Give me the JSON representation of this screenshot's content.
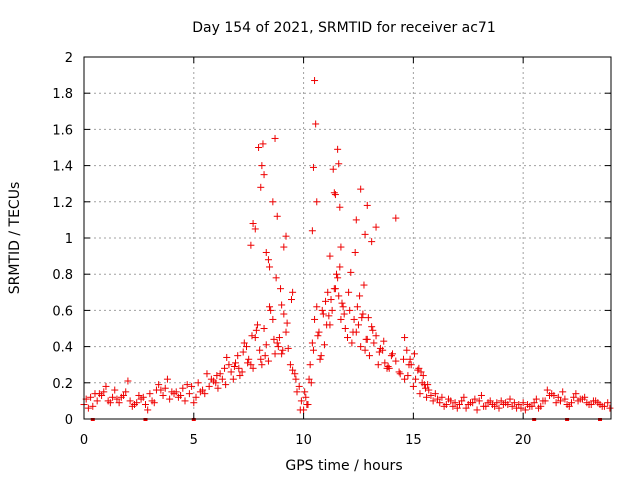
{
  "chart_data": {
    "type": "scatter",
    "title": "Day 154 of 2021, SRMTID for receiver ac71",
    "xlabel": "GPS time / hours",
    "ylabel": "SRMTID / TECUs",
    "xlim": [
      0,
      24
    ],
    "ylim": [
      0,
      2
    ],
    "xticks": [
      0,
      5,
      10,
      15,
      20
    ],
    "yticks": [
      0,
      0.2,
      0.4,
      0.6,
      0.8,
      1,
      1.2,
      1.4,
      1.6,
      1.8,
      2
    ],
    "xtick_labels": [
      "0",
      "5",
      "10",
      "15",
      "20"
    ],
    "ytick_labels": [
      "0",
      "0.2",
      "0.4",
      "0.6",
      "0.8",
      "1",
      "1.2",
      "1.4",
      "1.6",
      "1.8",
      "2"
    ],
    "grid": true,
    "marker": "+",
    "color": "#ee0000",
    "series": [
      {
        "name": "SRMTID",
        "x": [
          0.0,
          0.3,
          0.6,
          0.9,
          1.2,
          1.5,
          1.8,
          2.1,
          2.4,
          2.7,
          3.0,
          3.3,
          3.6,
          3.9,
          4.2,
          4.5,
          4.8,
          5.1,
          5.4,
          5.7,
          0.1,
          0.4,
          0.7,
          1.0,
          1.3,
          1.6,
          1.9,
          2.2,
          2.5,
          2.8,
          3.1,
          3.4,
          3.7,
          4.0,
          4.3,
          4.6,
          4.9,
          5.2,
          5.5,
          5.8,
          0.2,
          0.8,
          1.4,
          2.0,
          2.6,
          3.2,
          3.8,
          4.4,
          5.0,
          5.6,
          0.5,
          1.1,
          1.7,
          2.3,
          2.9,
          3.5,
          4.1,
          4.7,
          5.3,
          5.9,
          6.0,
          6.2,
          6.4,
          6.6,
          6.8,
          7.0,
          7.2,
          7.4,
          7.6,
          7.8,
          8.0,
          8.2,
          8.4,
          8.6,
          8.8,
          9.0,
          9.2,
          9.4,
          9.6,
          9.8,
          6.1,
          6.3,
          6.5,
          6.7,
          6.9,
          7.1,
          7.3,
          7.5,
          7.7,
          7.9,
          8.1,
          8.3,
          8.5,
          8.7,
          8.9,
          9.1,
          9.3,
          9.5,
          9.7,
          9.9,
          6.05,
          6.45,
          6.85,
          7.25,
          7.65,
          8.05,
          8.45,
          8.85,
          9.25,
          9.65,
          7.05,
          7.45,
          7.85,
          8.25,
          8.65,
          9.05,
          9.45,
          9.85,
          7.8,
          7.95,
          8.05,
          8.1,
          8.15,
          8.2,
          8.3,
          8.45,
          8.6,
          8.7,
          8.75,
          8.8,
          8.95,
          9.1,
          9.2,
          9.5,
          7.6,
          7.7,
          8.4,
          9.0,
          10.0,
          10.1,
          10.2,
          10.3,
          10.4,
          10.5,
          10.6,
          10.7,
          10.8,
          10.9,
          11.0,
          11.1,
          11.2,
          11.3,
          11.4,
          11.5,
          11.6,
          11.7,
          11.8,
          11.9,
          12.0,
          12.1,
          12.2,
          12.3,
          12.4,
          12.5,
          12.6,
          12.7,
          12.8,
          12.9,
          13.0,
          13.2,
          13.4,
          13.6,
          13.8,
          14.0,
          14.2,
          14.4,
          14.6,
          14.8,
          10.05,
          10.25,
          10.45,
          10.65,
          10.85,
          11.05,
          11.25,
          11.45,
          11.65,
          11.85,
          12.05,
          12.25,
          12.45,
          12.65,
          12.85,
          13.1,
          13.3,
          13.5,
          13.7,
          13.9,
          10.5,
          10.55,
          10.45,
          10.6,
          10.4,
          11.4,
          11.55,
          11.6,
          11.65,
          11.45,
          11.35,
          11.7,
          12.6,
          12.9,
          13.1,
          12.8,
          12.4,
          13.3,
          14.2,
          11.2,
          10.15,
          10.35,
          10.75,
          10.95,
          11.15,
          11.55,
          11.75,
          12.15,
          12.35,
          12.55,
          12.75,
          12.95,
          13.15,
          13.45,
          13.65,
          13.85,
          14.05,
          14.35,
          14.55,
          14.75,
          15.0,
          15.3,
          15.6,
          15.9,
          16.2,
          16.5,
          16.8,
          17.1,
          17.4,
          17.7,
          18.0,
          18.3,
          18.6,
          18.9,
          19.2,
          19.5,
          19.8,
          20.1,
          20.4,
          20.7,
          15.1,
          15.4,
          15.7,
          16.0,
          16.3,
          16.6,
          16.9,
          17.2,
          17.5,
          17.8,
          18.1,
          18.4,
          18.7,
          19.0,
          19.3,
          19.6,
          19.9,
          20.2,
          20.5,
          20.8,
          21.0,
          21.3,
          21.6,
          21.9,
          22.2,
          22.5,
          22.8,
          23.1,
          23.4,
          23.7,
          23.95,
          21.1,
          21.4,
          21.7,
          22.0,
          22.3,
          22.6,
          22.9,
          23.2,
          23.5,
          15.2,
          15.5,
          15.8,
          16.1,
          16.4,
          16.7,
          17.0,
          17.3,
          17.6,
          17.9,
          18.2,
          18.5,
          18.8,
          19.1,
          19.4,
          19.7,
          20.0,
          20.3,
          20.6,
          20.9,
          14.9,
          15.05,
          15.25,
          15.45,
          15.65,
          14.6,
          14.7,
          14.85,
          15.35,
          15.55,
          21.2,
          21.5,
          21.8,
          22.1,
          22.4,
          22.7,
          23.0,
          23.3,
          23.6,
          23.85
        ],
        "y": [
          0.08,
          0.12,
          0.1,
          0.15,
          0.09,
          0.11,
          0.13,
          0.1,
          0.09,
          0.12,
          0.14,
          0.16,
          0.13,
          0.11,
          0.15,
          0.17,
          0.14,
          0.12,
          0.16,
          0.18,
          0.11,
          0.07,
          0.14,
          0.18,
          0.12,
          0.09,
          0.15,
          0.07,
          0.13,
          0.08,
          0.1,
          0.19,
          0.17,
          0.15,
          0.12,
          0.1,
          0.18,
          0.2,
          0.14,
          0.22,
          0.06,
          0.13,
          0.16,
          0.21,
          0.11,
          0.09,
          0.22,
          0.13,
          0.09,
          0.25,
          0.14,
          0.1,
          0.12,
          0.08,
          0.05,
          0.16,
          0.14,
          0.19,
          0.15,
          0.21,
          0.2,
          0.25,
          0.28,
          0.3,
          0.22,
          0.35,
          0.26,
          0.4,
          0.3,
          0.45,
          0.38,
          0.5,
          0.32,
          0.55,
          0.42,
          0.36,
          0.48,
          0.3,
          0.25,
          0.18,
          0.17,
          0.22,
          0.34,
          0.26,
          0.31,
          0.24,
          0.42,
          0.33,
          0.28,
          0.52,
          0.3,
          0.41,
          0.6,
          0.36,
          0.45,
          0.58,
          0.39,
          0.27,
          0.15,
          0.1,
          0.24,
          0.19,
          0.29,
          0.37,
          0.46,
          0.33,
          0.62,
          0.4,
          0.53,
          0.22,
          0.28,
          0.31,
          0.49,
          0.35,
          0.44,
          0.38,
          0.66,
          0.05,
          1.05,
          1.5,
          1.28,
          1.4,
          1.52,
          1.35,
          0.92,
          0.84,
          1.2,
          1.55,
          0.78,
          1.12,
          0.72,
          0.95,
          1.01,
          0.7,
          0.96,
          1.08,
          0.88,
          0.63,
          0.05,
          0.12,
          0.08,
          0.3,
          0.42,
          0.55,
          0.62,
          0.48,
          0.35,
          0.58,
          0.65,
          0.7,
          0.52,
          0.6,
          0.72,
          0.8,
          0.68,
          0.55,
          0.62,
          0.5,
          0.45,
          0.6,
          0.42,
          0.55,
          0.48,
          0.52,
          0.4,
          0.58,
          0.38,
          0.44,
          0.35,
          0.42,
          0.3,
          0.38,
          0.28,
          0.35,
          0.32,
          0.25,
          0.22,
          0.3,
          0.15,
          0.22,
          0.38,
          0.46,
          0.6,
          0.52,
          0.66,
          0.72,
          0.84,
          0.58,
          0.7,
          0.48,
          0.62,
          0.56,
          0.44,
          0.51,
          0.46,
          0.39,
          0.31,
          0.28,
          1.87,
          1.63,
          1.39,
          1.2,
          1.04,
          1.25,
          1.49,
          1.41,
          1.17,
          1.24,
          1.38,
          0.95,
          1.27,
          1.18,
          0.98,
          1.02,
          1.1,
          1.06,
          1.11,
          0.9,
          0.08,
          0.2,
          0.33,
          0.41,
          0.57,
          0.78,
          0.64,
          0.81,
          0.92,
          0.68,
          0.74,
          0.56,
          0.49,
          0.37,
          0.43,
          0.29,
          0.36,
          0.26,
          0.33,
          0.24,
          0.18,
          0.14,
          0.12,
          0.1,
          0.09,
          0.08,
          0.07,
          0.08,
          0.06,
          0.09,
          0.1,
          0.07,
          0.08,
          0.06,
          0.09,
          0.07,
          0.08,
          0.05,
          0.07,
          0.06,
          0.22,
          0.2,
          0.16,
          0.14,
          0.12,
          0.11,
          0.09,
          0.1,
          0.08,
          0.11,
          0.13,
          0.09,
          0.07,
          0.1,
          0.08,
          0.09,
          0.06,
          0.08,
          0.09,
          0.07,
          0.1,
          0.14,
          0.12,
          0.11,
          0.09,
          0.1,
          0.12,
          0.08,
          0.09,
          0.07,
          0.06,
          0.16,
          0.13,
          0.1,
          0.08,
          0.12,
          0.11,
          0.09,
          0.1,
          0.08,
          0.27,
          0.19,
          0.13,
          0.11,
          0.07,
          0.1,
          0.06,
          0.12,
          0.09,
          0.05,
          0.07,
          0.1,
          0.09,
          0.08,
          0.11,
          0.06,
          0.09,
          0.07,
          0.11,
          0.1,
          0.3,
          0.36,
          0.28,
          0.24,
          0.19,
          0.45,
          0.38,
          0.33,
          0.26,
          0.17,
          0.13,
          0.09,
          0.15,
          0.07,
          0.14,
          0.11,
          0.08,
          0.1,
          0.07,
          0.09
        ]
      }
    ],
    "baseline_marks_x": [
      0.4,
      2.8,
      5.0,
      20.5,
      22.0,
      23.5
    ]
  }
}
